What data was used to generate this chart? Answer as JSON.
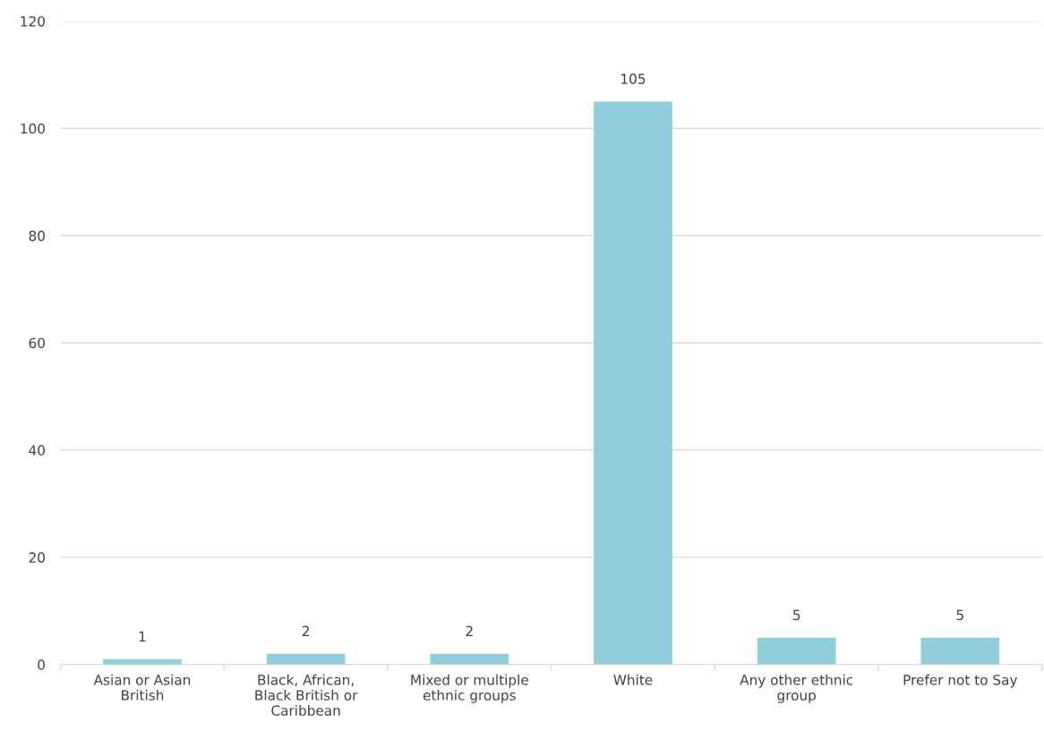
{
  "chart_data": {
    "type": "bar",
    "categories": [
      "Asian or Asian\nBritish",
      "Black, African,\nBlack British or\nCaribbean",
      "Mixed or multiple\nethnic groups",
      "White",
      "Any other ethnic\ngroup",
      "Prefer not to Say"
    ],
    "values": [
      1,
      2,
      2,
      105,
      5,
      5
    ],
    "color": "#92cddc",
    "ylim": [
      0,
      120
    ],
    "yticks": [
      0,
      20,
      40,
      60,
      80,
      100,
      120
    ],
    "grid": "y",
    "data_labels": true,
    "legend": false
  }
}
